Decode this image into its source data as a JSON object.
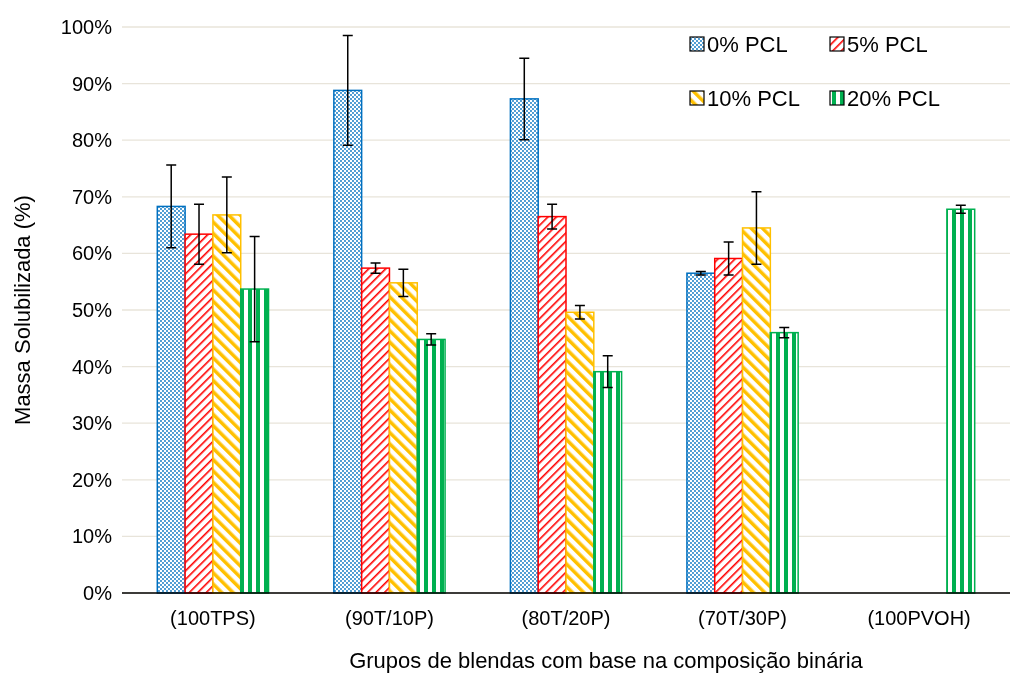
{
  "chart_data": {
    "type": "bar",
    "xlabel": "Grupos de blendas com base na composição binária",
    "ylabel": "Massa Solubilizada (%)",
    "categories": [
      "(100TPS)",
      "(90T/10P)",
      "(80T/20P)",
      "(70T/30P)",
      "(100PVOH)"
    ],
    "series": [
      {
        "name": "0% PCL",
        "color": "#0070c0",
        "values": [
          68.3,
          88.8,
          87.3,
          56.5,
          null
        ],
        "errors": [
          7.3,
          9.7,
          7.2,
          0.3,
          null
        ]
      },
      {
        "name": "5% PCL",
        "color": "#ff0000",
        "values": [
          63.4,
          57.4,
          66.5,
          59.1,
          null
        ],
        "errors": [
          5.3,
          0.9,
          2.2,
          2.9,
          null
        ]
      },
      {
        "name": "10% PCL",
        "color": "#ffc000",
        "values": [
          66.8,
          54.8,
          49.6,
          64.5,
          null
        ],
        "errors": [
          6.7,
          2.4,
          1.2,
          6.4,
          null
        ]
      },
      {
        "name": "20% PCL",
        "color": "#00b050",
        "values": [
          53.7,
          44.8,
          39.1,
          46.0,
          67.8
        ],
        "errors": [
          9.3,
          1.0,
          2.8,
          0.9,
          0.7
        ]
      }
    ],
    "ylim": [
      0,
      100
    ],
    "yticks": [
      {
        "value": 0,
        "label": "0%"
      },
      {
        "value": 10,
        "label": "10%"
      },
      {
        "value": 20,
        "label": "20%"
      },
      {
        "value": 30,
        "label": "30%"
      },
      {
        "value": 40,
        "label": "40%"
      },
      {
        "value": 50,
        "label": "50%"
      },
      {
        "value": 60,
        "label": "60%"
      },
      {
        "value": 70,
        "label": "70%"
      },
      {
        "value": 80,
        "label": "80%"
      },
      {
        "value": 90,
        "label": "90%"
      },
      {
        "value": 100,
        "label": "100%"
      }
    ],
    "grid": "y",
    "legend": "top right"
  }
}
